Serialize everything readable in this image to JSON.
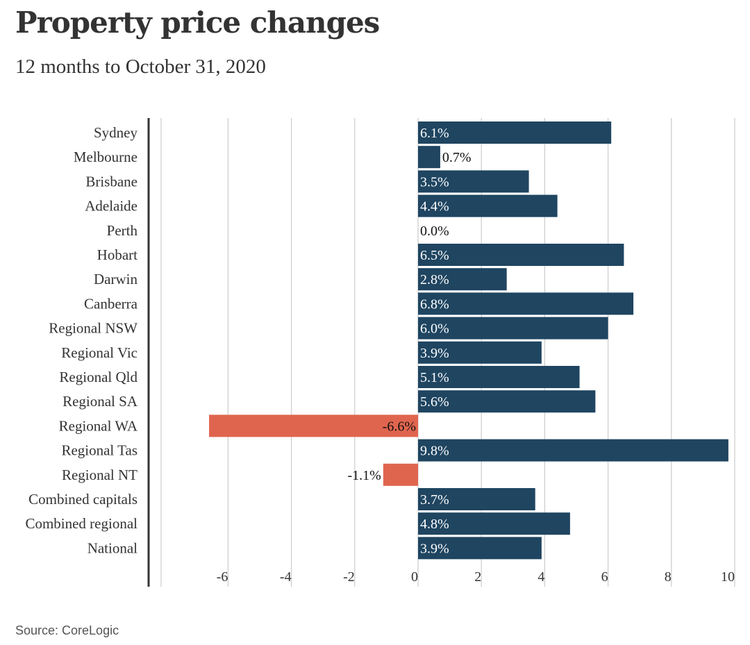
{
  "header": {
    "title": "Property price changes",
    "subtitle": "12 months to October 31, 2020"
  },
  "footer": {
    "source": "Source: CoreLogic"
  },
  "colors": {
    "positive": "#1f4561",
    "negative": "#e0654f",
    "grid": "#cccccc",
    "axis": "#333333",
    "text": "#333333"
  },
  "chart_data": {
    "type": "bar",
    "orientation": "horizontal",
    "title": "Property price changes",
    "subtitle": "12 months to October 31, 2020",
    "xlabel": "",
    "ylabel": "",
    "xlim": [
      -8.5,
      10.2
    ],
    "xticks": [
      -6,
      -4,
      -2,
      0,
      2,
      4,
      6,
      8,
      10
    ],
    "grid": true,
    "categories": [
      "Sydney",
      "Melbourne",
      "Brisbane",
      "Adelaide",
      "Perth",
      "Hobart",
      "Darwin",
      "Canberra",
      "Regional NSW",
      "Regional Vic",
      "Regional Qld",
      "Regional SA",
      "Regional WA",
      "Regional Tas",
      "Regional NT",
      "Combined capitals",
      "Combined regional",
      "National"
    ],
    "values": [
      6.1,
      0.7,
      3.5,
      4.4,
      0.0,
      6.5,
      2.8,
      6.8,
      6.0,
      3.9,
      5.1,
      5.6,
      -6.6,
      9.8,
      -1.1,
      3.7,
      4.8,
      3.9
    ],
    "labels": [
      "6.1%",
      "0.7%",
      "3.5%",
      "4.4%",
      "0.0%",
      "6.5%",
      "2.8%",
      "6.8%",
      "6.0%",
      "3.9%",
      "5.1%",
      "5.6%",
      "-6.6%",
      "9.8%",
      "-1.1%",
      "3.7%",
      "4.8%",
      "3.9%"
    ]
  }
}
